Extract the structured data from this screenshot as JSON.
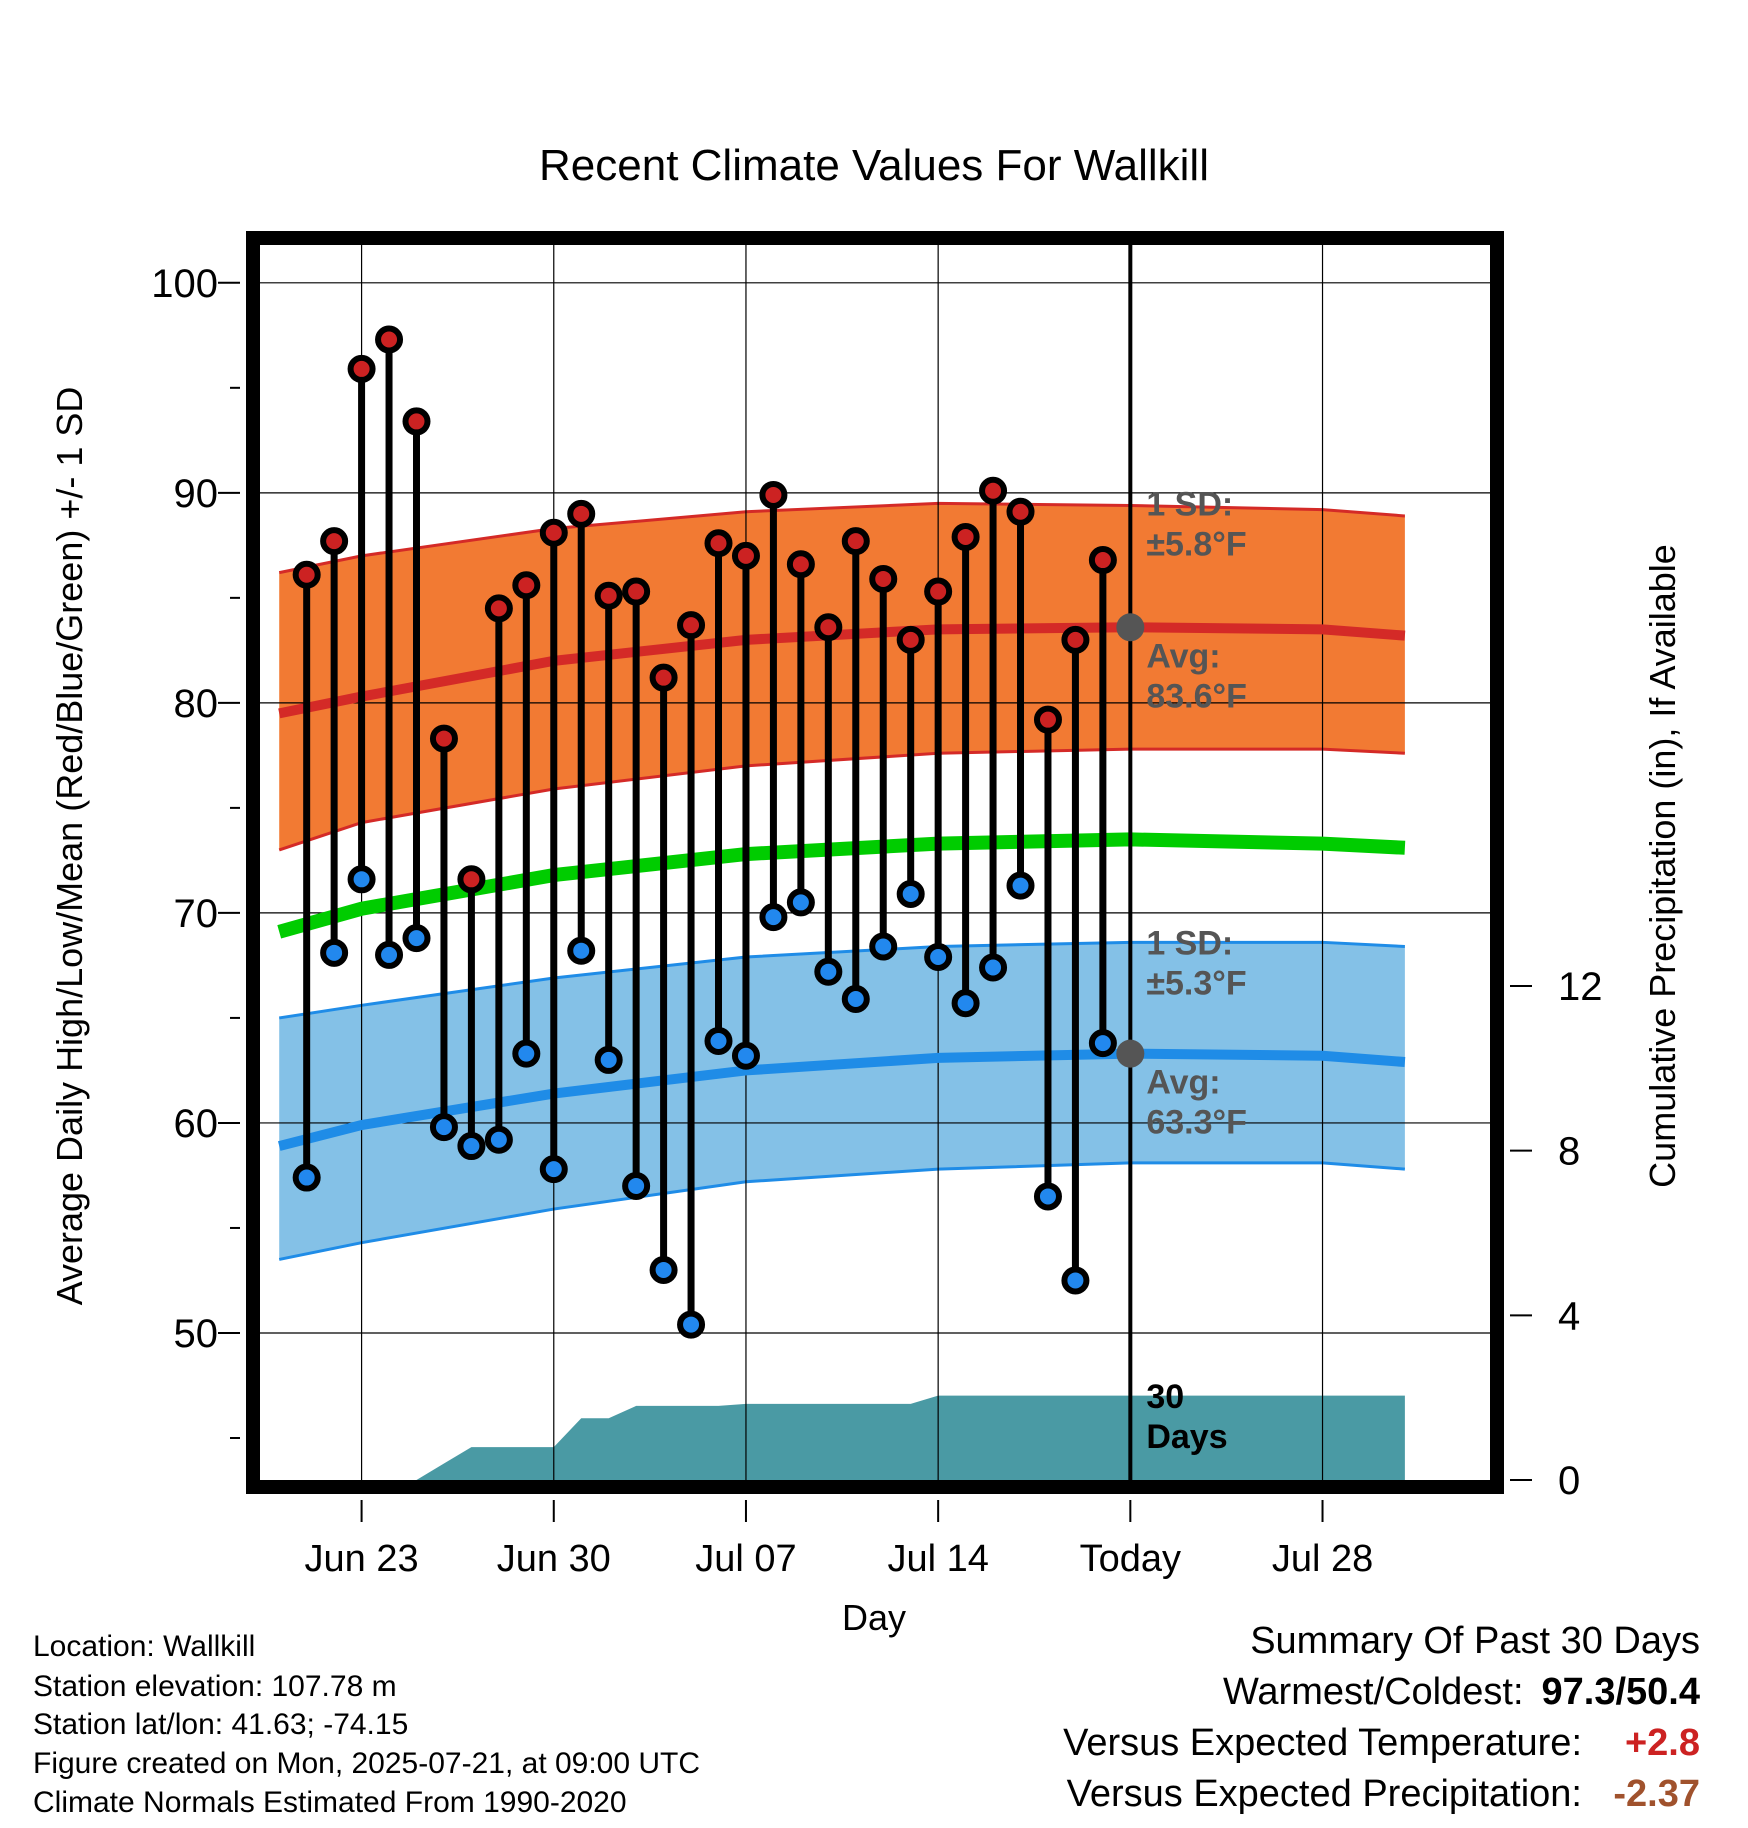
{
  "chart_data": {
    "type": "line",
    "title": "Recent Climate Values For Wallkill",
    "xlabel": "Day",
    "ylabel": "Average Daily High/Low/Mean (Red/Blue/Green) +/- 1 SD",
    "y2label": "Cumulative Precipitation (in), If Available",
    "ylim": [
      43,
      101.8
    ],
    "y2lim": [
      0,
      30
    ],
    "yticks": [
      50,
      60,
      70,
      80,
      90,
      100
    ],
    "y2ticks": [
      0,
      4,
      8,
      12
    ],
    "xlim": [
      -3.7,
      41.1
    ],
    "xticks": [
      {
        "label": "Jun 23",
        "day": 0
      },
      {
        "label": "Jun 30",
        "day": 7
      },
      {
        "label": "Jul 07",
        "day": 14
      },
      {
        "label": "Jul 14",
        "day": 21
      },
      {
        "label": "Today",
        "day": 28
      },
      {
        "label": "Jul 28",
        "day": 35
      }
    ],
    "grid": true,
    "observed": {
      "days": [
        -2,
        -1,
        0,
        1,
        2,
        3,
        4,
        5,
        6,
        7,
        8,
        9,
        10,
        11,
        12,
        13,
        14,
        15,
        16,
        17,
        18,
        19,
        20,
        21,
        22,
        23,
        24,
        25,
        26,
        27
      ],
      "high": [
        86.1,
        87.7,
        95.9,
        97.3,
        93.4,
        78.3,
        71.6,
        84.5,
        85.6,
        88.1,
        89.0,
        85.1,
        85.3,
        81.2,
        83.7,
        87.6,
        87.0,
        89.9,
        86.6,
        83.6,
        87.7,
        85.9,
        83.0,
        85.3,
        87.9,
        90.1,
        89.1,
        79.2,
        83.0,
        86.8
      ],
      "low": [
        57.4,
        68.1,
        71.6,
        68.0,
        68.8,
        59.8,
        58.9,
        59.2,
        63.3,
        57.8,
        68.2,
        63.0,
        57.0,
        53.0,
        50.4,
        63.9,
        63.2,
        69.8,
        70.5,
        67.2,
        65.9,
        68.4,
        70.9,
        67.9,
        65.7,
        67.4,
        71.3,
        56.5,
        52.5,
        63.8
      ]
    },
    "normals": {
      "days": [
        -3,
        0,
        7,
        14,
        21,
        28,
        35,
        38
      ],
      "avg_high": [
        79.5,
        80.3,
        82.0,
        83.0,
        83.5,
        83.6,
        83.5,
        83.2
      ],
      "high_sd_upper": [
        86.2,
        87.0,
        88.3,
        89.1,
        89.5,
        89.4,
        89.2,
        88.9
      ],
      "high_sd_lower": [
        73.0,
        74.3,
        75.9,
        77.0,
        77.6,
        77.8,
        77.8,
        77.6
      ],
      "avg_mean": [
        69.1,
        70.2,
        71.8,
        72.8,
        73.3,
        73.5,
        73.3,
        73.1
      ],
      "avg_low": [
        58.9,
        59.9,
        61.4,
        62.5,
        63.1,
        63.3,
        63.2,
        62.9
      ],
      "low_sd_upper": [
        65.0,
        65.6,
        66.9,
        67.9,
        68.4,
        68.6,
        68.6,
        68.4
      ],
      "low_sd_lower": [
        53.5,
        54.3,
        55.9,
        57.2,
        57.8,
        58.1,
        58.1,
        57.8
      ]
    },
    "precip": {
      "days": [
        -3,
        2,
        3,
        4,
        7,
        8,
        9,
        10,
        13,
        14,
        20,
        21,
        38
      ],
      "cumulative": [
        0,
        0,
        0.4,
        0.8,
        0.8,
        1.5,
        1.5,
        1.8,
        1.8,
        1.85,
        1.85,
        2.05,
        2.05
      ]
    },
    "annotations": {
      "high_sd": [
        "1 SD:",
        "±5.8°F"
      ],
      "high_avg": [
        "Avg:",
        "83.6°F"
      ],
      "low_sd": [
        "1 SD:",
        "±5.3°F"
      ],
      "low_avg": [
        "Avg:",
        "63.3°F"
      ],
      "precip_window": [
        "30",
        "Days"
      ]
    },
    "colors": {
      "high_band": "#f27a33",
      "high_line": "#d42a27",
      "mean_line": "#00cc00",
      "low_band": "#84c1e7",
      "low_line": "#1f8ce7",
      "precip": "#4a9aa4",
      "high_marker": "#cc2222",
      "low_marker": "#2288ee",
      "annotation": "#555555"
    }
  },
  "info": {
    "location": "Location: Wallkill",
    "elevation": "Station elevation: 107.78 m",
    "latlon": "Station lat/lon: 41.63; -74.15",
    "created": "Figure created on Mon, 2025-07-21, at 09:00 UTC",
    "normals": "Climate Normals Estimated From 1990-2020"
  },
  "summary": {
    "heading": "Summary Of Past 30 Days",
    "warm_cold_label": "Warmest/Coldest:",
    "warm_cold_value": "97.3/50.4",
    "temp_label": "Versus Expected Temperature:",
    "temp_value": "+2.8",
    "temp_color": "#cc2222",
    "precip_label": "Versus Expected Precipitation:",
    "precip_value": "-2.37",
    "precip_color": "#a0522d"
  }
}
